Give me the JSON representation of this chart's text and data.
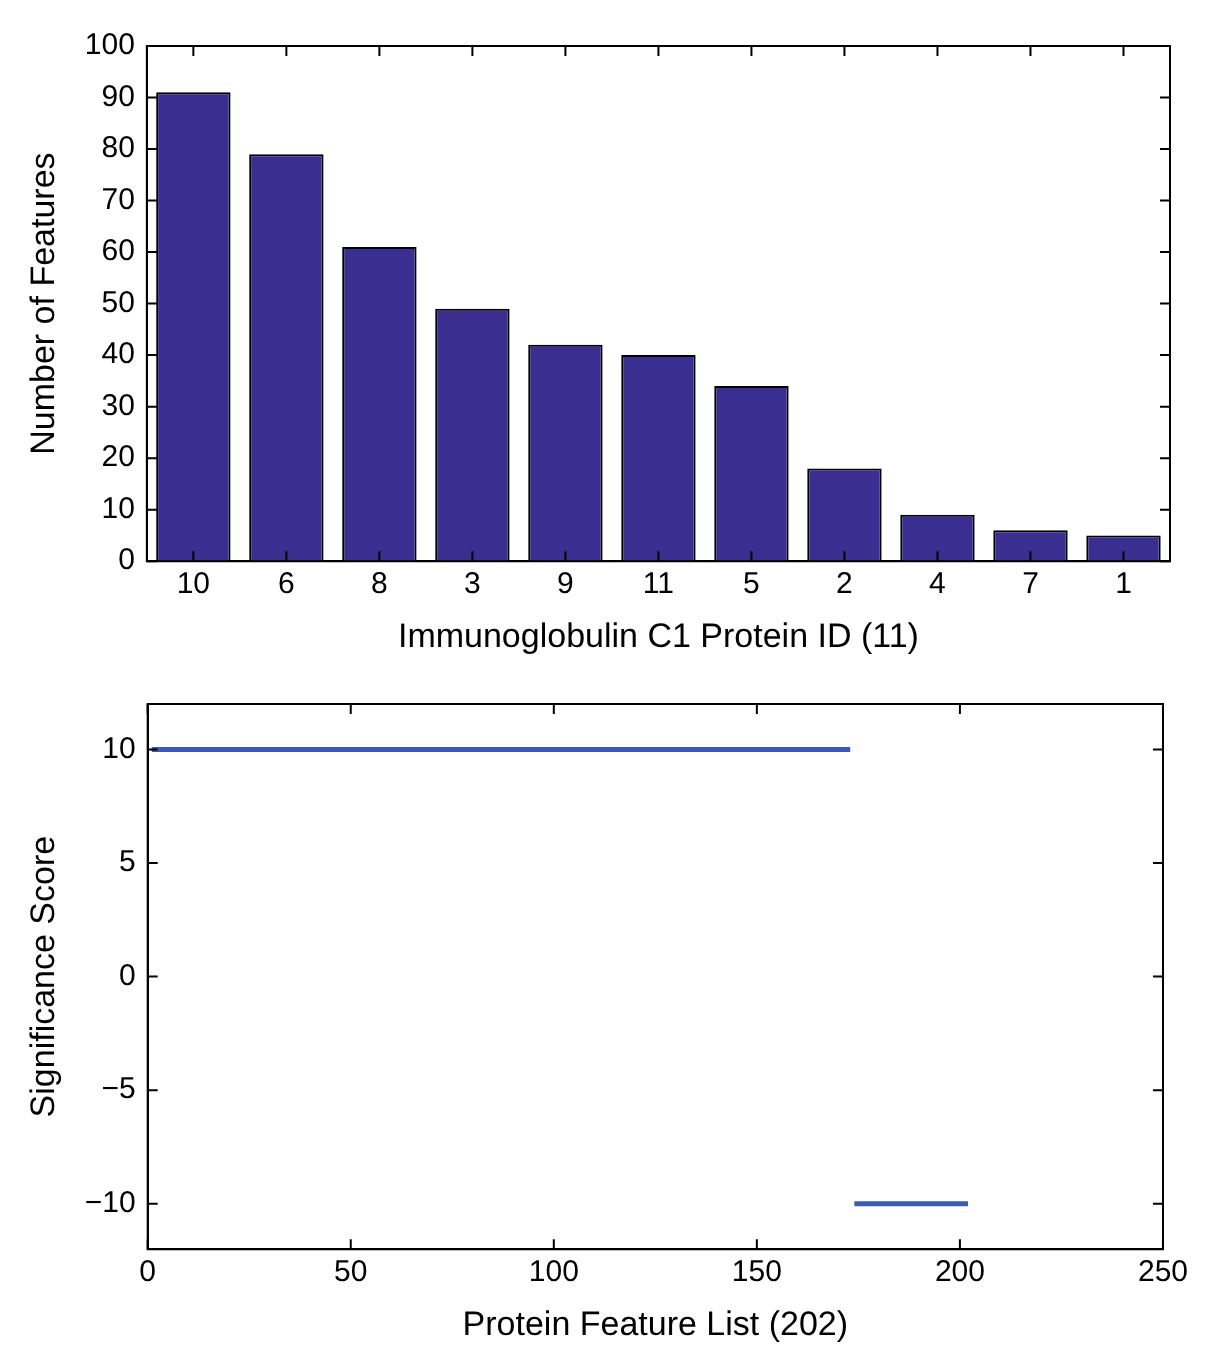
{
  "chart_data": [
    {
      "type": "bar",
      "xlabel": "Immunoglobulin C1 Protein ID (11)",
      "ylabel": "Number of Features",
      "categories": [
        "10",
        "6",
        "8",
        "3",
        "9",
        "11",
        "5",
        "2",
        "4",
        "7",
        "1"
      ],
      "values": [
        91,
        79,
        61,
        49,
        42,
        40,
        34,
        18,
        9,
        6,
        5
      ],
      "color": "#3b2e91",
      "ylim": [
        0,
        100
      ],
      "yticks": [
        0,
        10,
        20,
        30,
        40,
        50,
        60,
        70,
        80,
        90,
        100
      ]
    },
    {
      "type": "line",
      "xlabel": "Protein Feature List (202)",
      "ylabel": "Significance Score",
      "xlim": [
        0,
        250
      ],
      "xticks": [
        0,
        50,
        100,
        150,
        200,
        250
      ],
      "ylim": [
        -12,
        12
      ],
      "yticks": [
        -10,
        -5,
        0,
        5,
        10
      ],
      "marker": "none",
      "series": [
        {
          "x": [
            1,
            173
          ],
          "values": [
            10,
            10
          ],
          "color": "#3a5bb5"
        },
        {
          "x": [
            174,
            202
          ],
          "values": [
            -10,
            -10
          ],
          "color": "#3a5bb5"
        }
      ]
    }
  ]
}
